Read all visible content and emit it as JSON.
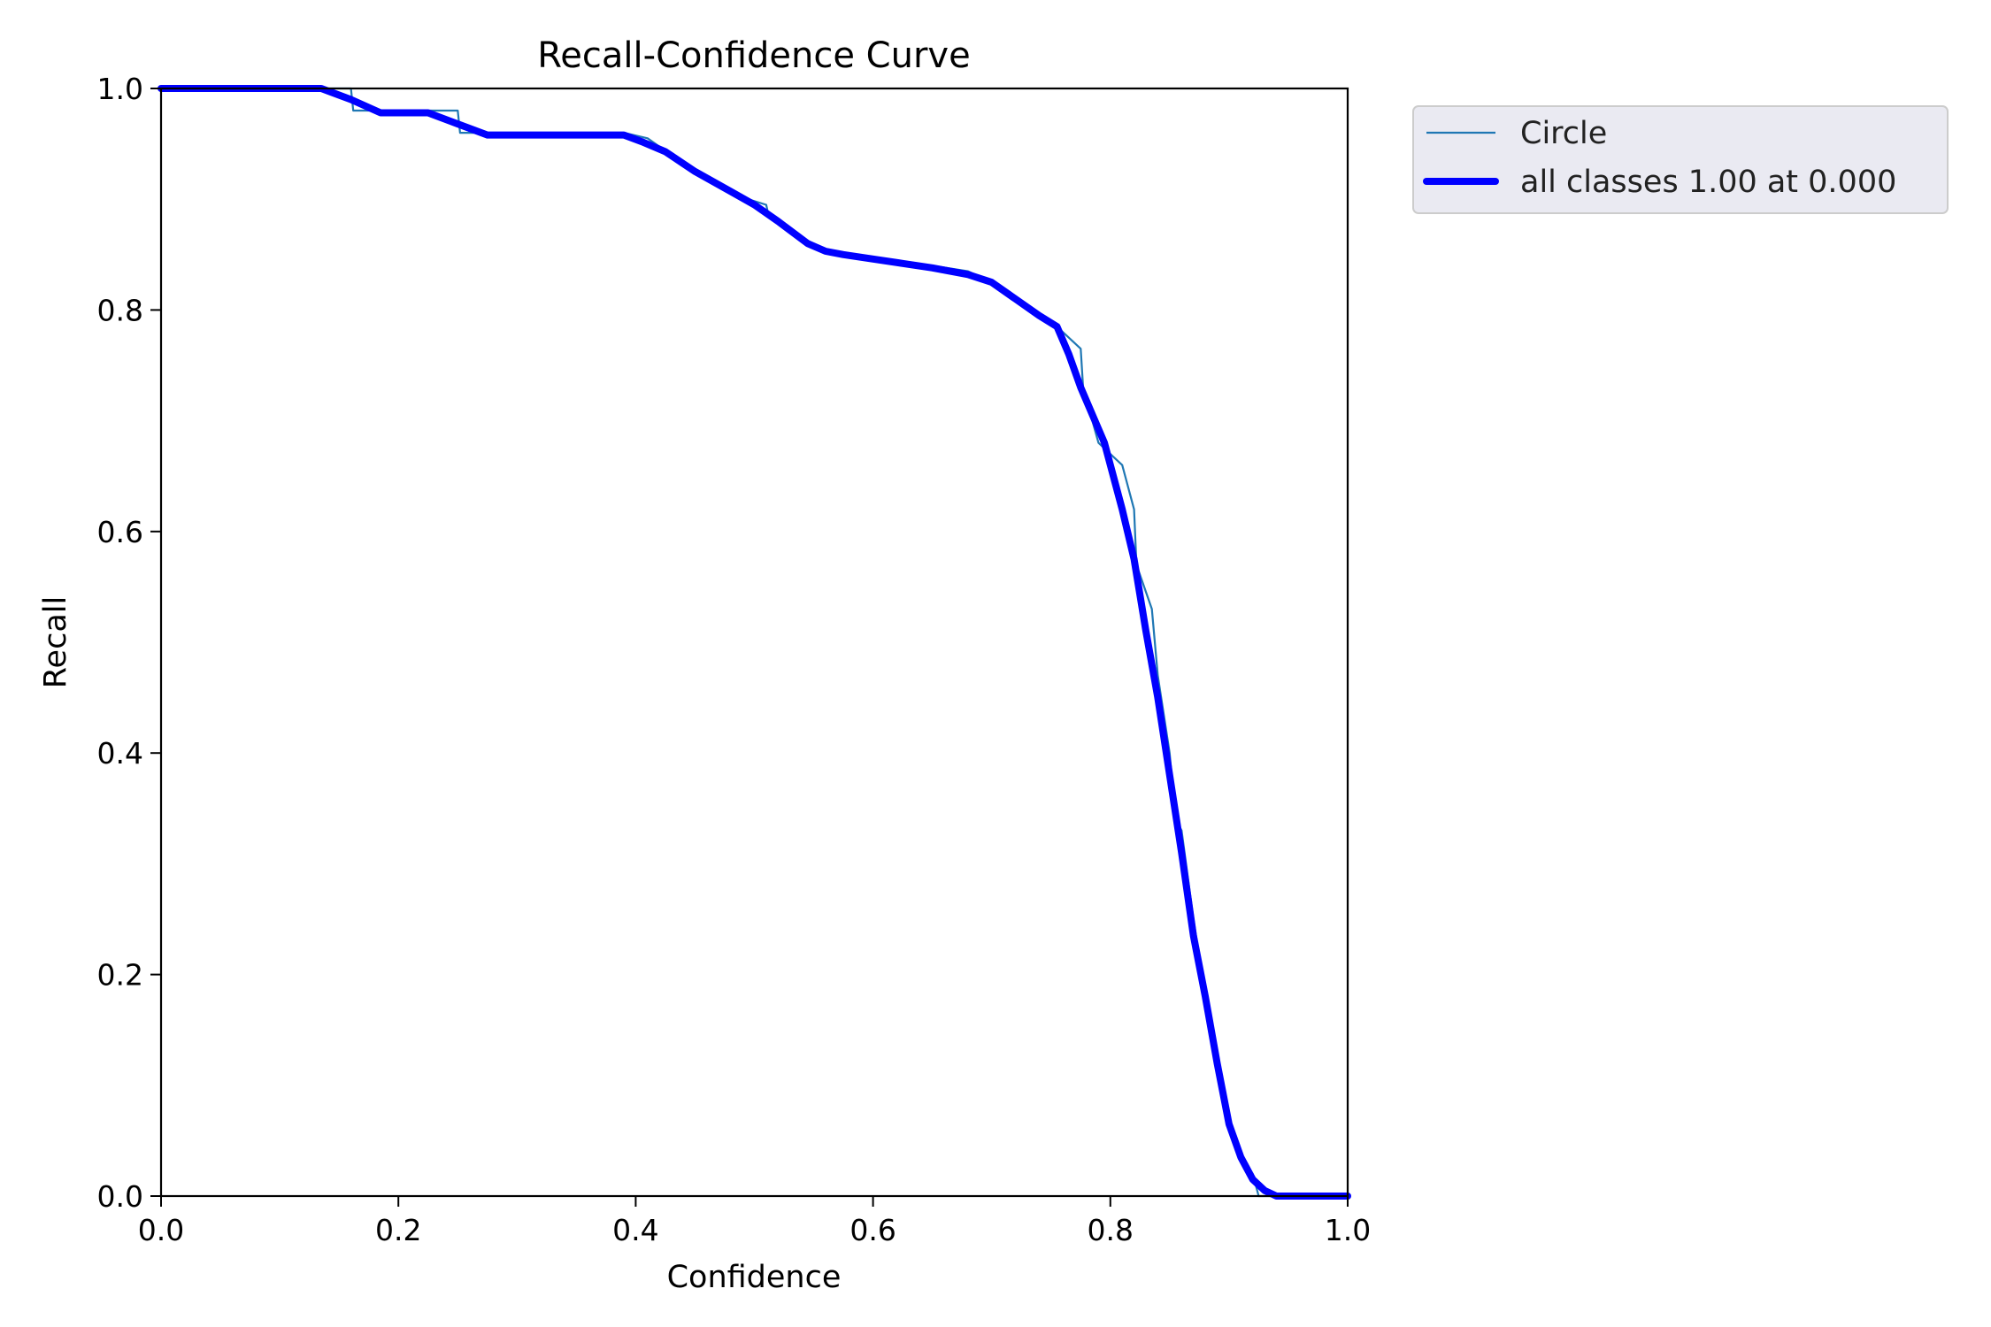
{
  "chart_data": {
    "type": "line",
    "title": "Recall-Confidence Curve",
    "xlabel": "Confidence",
    "ylabel": "Recall",
    "xlim": [
      0.0,
      1.0
    ],
    "ylim": [
      0.0,
      1.0
    ],
    "xticks": [
      "0.0",
      "0.2",
      "0.4",
      "0.6",
      "0.8",
      "1.0"
    ],
    "yticks": [
      "0.0",
      "0.2",
      "0.4",
      "0.6",
      "0.8",
      "1.0"
    ],
    "grid": false,
    "legend_position": "outside-top-right",
    "series": [
      {
        "name": "Circle",
        "color": "#1f77b4",
        "style": "thin",
        "x": [
          0.0,
          0.16,
          0.162,
          0.18,
          0.2,
          0.25,
          0.252,
          0.28,
          0.3,
          0.35,
          0.39,
          0.41,
          0.43,
          0.45,
          0.48,
          0.51,
          0.512,
          0.54,
          0.56,
          0.6,
          0.65,
          0.68,
          0.7,
          0.73,
          0.755,
          0.775,
          0.777,
          0.79,
          0.8,
          0.81,
          0.82,
          0.822,
          0.835,
          0.84,
          0.85,
          0.855,
          0.86,
          0.87,
          0.88,
          0.89,
          0.9,
          0.91,
          0.92,
          0.925,
          0.926,
          0.95,
          1.0
        ],
        "y": [
          1.0,
          1.0,
          0.98,
          0.98,
          0.98,
          0.98,
          0.96,
          0.96,
          0.96,
          0.96,
          0.96,
          0.955,
          0.94,
          0.925,
          0.905,
          0.895,
          0.885,
          0.865,
          0.855,
          0.845,
          0.84,
          0.835,
          0.825,
          0.8,
          0.785,
          0.765,
          0.73,
          0.68,
          0.67,
          0.66,
          0.62,
          0.57,
          0.53,
          0.47,
          0.4,
          0.34,
          0.33,
          0.25,
          0.18,
          0.11,
          0.07,
          0.035,
          0.02,
          0.0,
          0.0,
          0.0,
          0.0
        ]
      },
      {
        "name": "all classes 1.00 at 0.000",
        "color": "#0000ff",
        "style": "thick",
        "x": [
          0.0,
          0.135,
          0.16,
          0.185,
          0.2,
          0.225,
          0.25,
          0.275,
          0.3,
          0.35,
          0.39,
          0.405,
          0.425,
          0.45,
          0.48,
          0.5,
          0.52,
          0.545,
          0.56,
          0.575,
          0.6,
          0.625,
          0.65,
          0.68,
          0.7,
          0.72,
          0.74,
          0.755,
          0.765,
          0.775,
          0.785,
          0.795,
          0.8,
          0.81,
          0.82,
          0.83,
          0.84,
          0.85,
          0.86,
          0.87,
          0.88,
          0.89,
          0.9,
          0.91,
          0.92,
          0.93,
          0.94,
          0.95,
          1.0
        ],
        "y": [
          1.0,
          1.0,
          0.99,
          0.978,
          0.978,
          0.978,
          0.968,
          0.958,
          0.958,
          0.958,
          0.958,
          0.952,
          0.943,
          0.925,
          0.907,
          0.895,
          0.88,
          0.86,
          0.853,
          0.85,
          0.846,
          0.842,
          0.838,
          0.832,
          0.825,
          0.81,
          0.795,
          0.785,
          0.76,
          0.73,
          0.705,
          0.68,
          0.66,
          0.62,
          0.575,
          0.51,
          0.45,
          0.38,
          0.31,
          0.235,
          0.18,
          0.12,
          0.065,
          0.035,
          0.015,
          0.005,
          0.0,
          0.0,
          0.0
        ]
      }
    ]
  }
}
